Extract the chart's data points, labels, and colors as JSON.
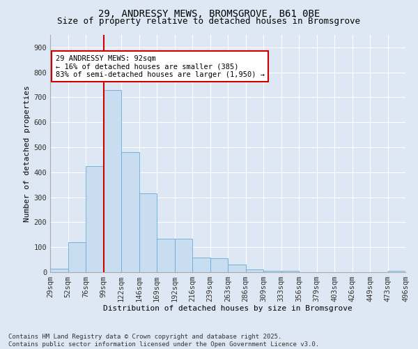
{
  "title1": "29, ANDRESSY MEWS, BROMSGROVE, B61 0BE",
  "title2": "Size of property relative to detached houses in Bromsgrove",
  "xlabel": "Distribution of detached houses by size in Bromsgrove",
  "ylabel": "Number of detached properties",
  "bar_values": [
    15,
    120,
    425,
    730,
    480,
    315,
    135,
    135,
    60,
    55,
    30,
    10,
    5,
    5,
    0,
    0,
    0,
    0,
    0,
    5
  ],
  "bin_labels": [
    "29sqm",
    "52sqm",
    "76sqm",
    "99sqm",
    "122sqm",
    "146sqm",
    "169sqm",
    "192sqm",
    "216sqm",
    "239sqm",
    "263sqm",
    "286sqm",
    "309sqm",
    "333sqm",
    "356sqm",
    "379sqm",
    "403sqm",
    "426sqm",
    "449sqm",
    "473sqm",
    "496sqm"
  ],
  "bar_color": "#c9ddf0",
  "bar_edge_color": "#6aaad4",
  "vline_color": "#cc0000",
  "vline_x": 3.0,
  "annotation_text": "29 ANDRESSY MEWS: 92sqm\n← 16% of detached houses are smaller (385)\n83% of semi-detached houses are larger (1,950) →",
  "annotation_box_facecolor": "#ffffff",
  "annotation_box_edgecolor": "#cc0000",
  "ylim": [
    0,
    950
  ],
  "yticks": [
    0,
    100,
    200,
    300,
    400,
    500,
    600,
    700,
    800,
    900
  ],
  "footer_text": "Contains HM Land Registry data © Crown copyright and database right 2025.\nContains public sector information licensed under the Open Government Licence v3.0.",
  "background_color": "#dde8f4",
  "plot_bg_color": "#dde8f4",
  "grid_color": "#ffffff",
  "title1_fontsize": 10,
  "title2_fontsize": 9,
  "axis_fontsize": 8,
  "tick_fontsize": 7.5,
  "annot_fontsize": 7.5,
  "footer_fontsize": 6.5
}
